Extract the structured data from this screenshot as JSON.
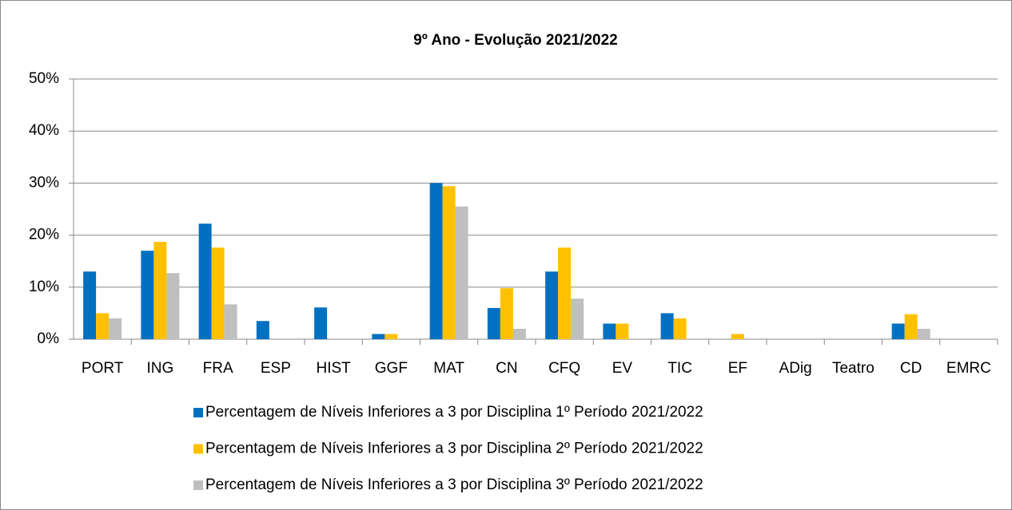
{
  "chart_data": {
    "type": "bar",
    "title": "9º Ano - Evolução 2021/2022",
    "categories": [
      "PORT",
      "ING",
      "FRA",
      "ESP",
      "HIST",
      "GGF",
      "MAT",
      "CN",
      "CFQ",
      "EV",
      "TIC",
      "EF",
      "ADig",
      "Teatro",
      "CD",
      "EMRC"
    ],
    "series": [
      {
        "name": "Percentagem de Níveis Inferiores a 3 por Disciplina 1º Período 2021/2022",
        "color": "#0070c0",
        "values": [
          13,
          17,
          22.2,
          3.5,
          6.1,
          1,
          30,
          6,
          13,
          3,
          5,
          0,
          0,
          0,
          3,
          0
        ]
      },
      {
        "name": "Percentagem de Níveis Inferiores a 3 por Disciplina 2º Período 2021/2022",
        "color": "#ffc000",
        "values": [
          5,
          18.7,
          17.6,
          0,
          0,
          1,
          29.4,
          9.8,
          17.6,
          3,
          4,
          1,
          0,
          0,
          4.8,
          0
        ]
      },
      {
        "name": "Percentagem de Níveis Inferiores a 3 por Disciplina 3º Período 2021/2022",
        "color": "#bfbfbf",
        "values": [
          4,
          12.7,
          6.7,
          0,
          0,
          0,
          25.5,
          2,
          7.8,
          0,
          0,
          0,
          0,
          0,
          2,
          0
        ]
      }
    ],
    "ylim": [
      0,
      50
    ],
    "yticks": [
      {
        "value": 0,
        "label": "0%"
      },
      {
        "value": 10,
        "label": "10%"
      },
      {
        "value": 20,
        "label": "20%"
      },
      {
        "value": 30,
        "label": "30%"
      },
      {
        "value": 40,
        "label": "40%"
      },
      {
        "value": 50,
        "label": "50%"
      }
    ],
    "grid": true,
    "legend": "bottom"
  }
}
